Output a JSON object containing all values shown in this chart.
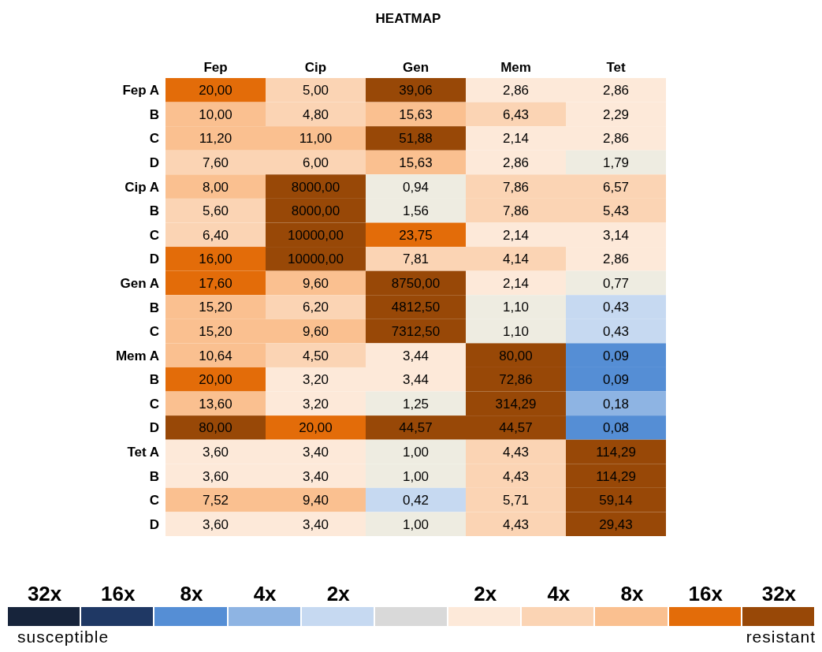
{
  "chart_data": {
    "type": "heatmap",
    "title": "HEATMAP",
    "categories": [
      "Fep",
      "Cip",
      "Gen",
      "Mem",
      "Tet"
    ],
    "y_categories": [
      "Fep A",
      "B",
      "C",
      "D",
      "Cip A",
      "B",
      "C",
      "D",
      "Gen A",
      "B",
      "C",
      "Mem A",
      "B",
      "C",
      "D",
      "Tet A",
      "B",
      "C",
      "D"
    ],
    "cells": [
      [
        20.0,
        5.0,
        39.06,
        2.86,
        2.86
      ],
      [
        10.0,
        4.8,
        15.63,
        6.43,
        2.29
      ],
      [
        11.2,
        11.0,
        51.88,
        2.14,
        2.86
      ],
      [
        7.6,
        6.0,
        15.63,
        2.86,
        1.79
      ],
      [
        8.0,
        8000.0,
        0.94,
        7.86,
        6.57
      ],
      [
        5.6,
        8000.0,
        1.56,
        7.86,
        5.43
      ],
      [
        6.4,
        10000.0,
        23.75,
        2.14,
        3.14
      ],
      [
        16.0,
        10000.0,
        7.81,
        4.14,
        2.86
      ],
      [
        17.6,
        9.6,
        8750.0,
        2.14,
        0.77
      ],
      [
        15.2,
        6.2,
        4812.5,
        1.1,
        0.43
      ],
      [
        15.2,
        9.6,
        7312.5,
        1.1,
        0.43
      ],
      [
        10.64,
        4.5,
        3.44,
        80.0,
        0.09
      ],
      [
        20.0,
        3.2,
        3.44,
        72.86,
        0.09
      ],
      [
        13.6,
        3.2,
        1.25,
        314.29,
        0.18
      ],
      [
        80.0,
        20.0,
        44.57,
        44.57,
        0.08
      ],
      [
        3.6,
        3.4,
        1.0,
        4.43,
        114.29
      ],
      [
        3.6,
        3.4,
        1.0,
        4.43,
        114.29
      ],
      [
        7.52,
        9.4,
        0.42,
        5.71,
        59.14
      ],
      [
        3.6,
        3.4,
        1.0,
        4.43,
        29.43
      ]
    ],
    "cell_labels": [
      [
        "20,00",
        "5,00",
        "39,06",
        "2,86",
        "2,86"
      ],
      [
        "10,00",
        "4,80",
        "15,63",
        "6,43",
        "2,29"
      ],
      [
        "11,20",
        "11,00",
        "51,88",
        "2,14",
        "2,86"
      ],
      [
        "7,60",
        "6,00",
        "15,63",
        "2,86",
        "1,79"
      ],
      [
        "8,00",
        "8000,00",
        "0,94",
        "7,86",
        "6,57"
      ],
      [
        "5,60",
        "8000,00",
        "1,56",
        "7,86",
        "5,43"
      ],
      [
        "6,40",
        "10000,00",
        "23,75",
        "2,14",
        "3,14"
      ],
      [
        "16,00",
        "10000,00",
        "7,81",
        "4,14",
        "2,86"
      ],
      [
        "17,60",
        "9,60",
        "8750,00",
        "2,14",
        "0,77"
      ],
      [
        "15,20",
        "6,20",
        "4812,50",
        "1,10",
        "0,43"
      ],
      [
        "15,20",
        "9,60",
        "7312,50",
        "1,10",
        "0,43"
      ],
      [
        "10,64",
        "4,50",
        "3,44",
        "80,00",
        "0,09"
      ],
      [
        "20,00",
        "3,20",
        "3,44",
        "72,86",
        "0,09"
      ],
      [
        "13,60",
        "3,20",
        "1,25",
        "314,29",
        "0,18"
      ],
      [
        "80,00",
        "20,00",
        "44,57",
        "44,57",
        "0,08"
      ],
      [
        "3,60",
        "3,40",
        "1,00",
        "4,43",
        "114,29"
      ],
      [
        "3,60",
        "3,40",
        "1,00",
        "4,43",
        "114,29"
      ],
      [
        "7,52",
        "9,40",
        "0,42",
        "5,71",
        "59,14"
      ],
      [
        "3,60",
        "3,40",
        "1,00",
        "4,43",
        "29,43"
      ]
    ],
    "colors": [
      [
        "#e36c09",
        "#fbd4b4",
        "#984807",
        "#fde9d9",
        "#fde9d9"
      ],
      [
        "#fac090",
        "#fbd4b4",
        "#fac090",
        "#fbd4b4",
        "#fde9d9"
      ],
      [
        "#fac090",
        "#fac090",
        "#984807",
        "#fde9d9",
        "#fde9d9"
      ],
      [
        "#fbd4b4",
        "#fbd4b4",
        "#fac090",
        "#fde9d9",
        "#eeece1"
      ],
      [
        "#fac090",
        "#984807",
        "#eeece1",
        "#fbd4b4",
        "#fbd4b4"
      ],
      [
        "#fbd4b4",
        "#984807",
        "#eeece1",
        "#fbd4b4",
        "#fbd4b4"
      ],
      [
        "#fbd4b4",
        "#984807",
        "#e36c09",
        "#fde9d9",
        "#fde9d9"
      ],
      [
        "#e36c09",
        "#984807",
        "#fbd4b4",
        "#fbd4b4",
        "#fde9d9"
      ],
      [
        "#e36c09",
        "#fac090",
        "#984807",
        "#fde9d9",
        "#eeece1"
      ],
      [
        "#fac090",
        "#fbd4b4",
        "#984807",
        "#eeece1",
        "#c6d9f1"
      ],
      [
        "#fac090",
        "#fac090",
        "#984807",
        "#eeece1",
        "#c6d9f1"
      ],
      [
        "#fac090",
        "#fbd4b4",
        "#fde9d9",
        "#984807",
        "#558ed5"
      ],
      [
        "#e36c09",
        "#fde9d9",
        "#fde9d9",
        "#984807",
        "#558ed5"
      ],
      [
        "#fac090",
        "#fde9d9",
        "#eeece1",
        "#984807",
        "#8eb4e3"
      ],
      [
        "#984807",
        "#e36c09",
        "#984807",
        "#984807",
        "#558ed5"
      ],
      [
        "#fde9d9",
        "#fde9d9",
        "#eeece1",
        "#fbd4b4",
        "#984807"
      ],
      [
        "#fde9d9",
        "#fde9d9",
        "#eeece1",
        "#fbd4b4",
        "#984807"
      ],
      [
        "#fac090",
        "#fac090",
        "#c6d9f1",
        "#fbd4b4",
        "#984807"
      ],
      [
        "#fde9d9",
        "#fde9d9",
        "#eeece1",
        "#fbd4b4",
        "#984807"
      ]
    ],
    "annotations": [
      "32x",
      "16x",
      "8x",
      "4x",
      "2x",
      "2x",
      "4x",
      "8x",
      "16x",
      "32x",
      "susceptible",
      "resistant"
    ]
  }
}
